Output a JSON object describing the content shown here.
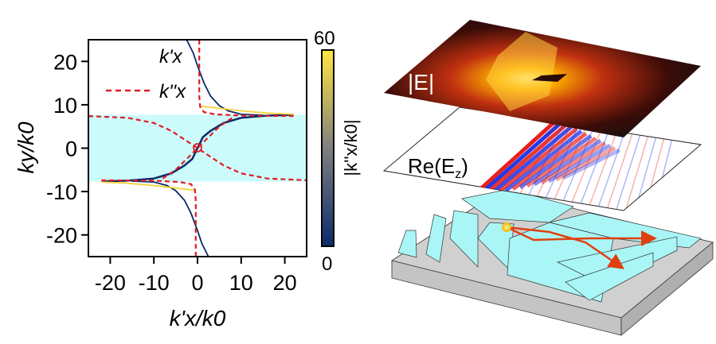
{
  "chart_data": {
    "type": "line",
    "xlabel": "k'x/k0",
    "ylabel": "ky/k0",
    "xlim": [
      -25,
      25
    ],
    "ylim": [
      -25,
      25
    ],
    "xticks": [
      "-20",
      "-10",
      "0",
      "10",
      "20"
    ],
    "xtick_values": [
      -20,
      -10,
      0,
      10,
      20
    ],
    "yticks": [
      "20",
      "10",
      "0",
      "-10",
      "-20"
    ],
    "ytick_values": [
      20,
      10,
      0,
      -10,
      -20
    ],
    "shaded_band": {
      "ymin": -7.7,
      "ymax": 7.7,
      "color": "#ccfbfb"
    },
    "legend": {
      "placement": "top-left",
      "entries": [
        "k'x",
        "k''x"
      ]
    },
    "colorbar": {
      "label": "|k''x/k0|",
      "min": "0",
      "max": "60",
      "colors": [
        "#0a2a6b",
        "#7f7f7f",
        "#ffe640"
      ]
    },
    "series": [
      {
        "name": "k'x",
        "style": "solid-colormap",
        "color": "#0b2a66",
        "points": [
          [
            -22,
            -7.7
          ],
          [
            -16,
            -7.5
          ],
          [
            -10,
            -7
          ],
          [
            -6,
            -5.8
          ],
          [
            -3,
            -4
          ],
          [
            -1.2,
            -2.5
          ],
          [
            -0.5,
            -1
          ],
          [
            0,
            0
          ],
          [
            0.5,
            1
          ],
          [
            1.2,
            2.5
          ],
          [
            3,
            4
          ],
          [
            6,
            5.8
          ],
          [
            10,
            7
          ],
          [
            16,
            7.5
          ],
          [
            22,
            7.7
          ]
        ]
      },
      {
        "name": "k'x upper branch",
        "style": "solid",
        "color": "#0b2a66",
        "points": [
          [
            -2.5,
            25
          ],
          [
            -1,
            22
          ],
          [
            0,
            19
          ],
          [
            1.5,
            15
          ],
          [
            3,
            12
          ],
          [
            5,
            9.8
          ],
          [
            7,
            8.6
          ],
          [
            10,
            7.8
          ],
          [
            15,
            7.6
          ]
        ]
      },
      {
        "name": "k'x lower branch",
        "style": "solid",
        "color": "#0b2a66",
        "points": [
          [
            2.5,
            -25
          ],
          [
            1,
            -22
          ],
          [
            0,
            -19
          ],
          [
            -1.5,
            -15
          ],
          [
            -3,
            -12
          ],
          [
            -5,
            -9.8
          ],
          [
            -7,
            -8.6
          ],
          [
            -10,
            -7.8
          ],
          [
            -15,
            -7.6
          ]
        ]
      },
      {
        "name": "k'x yellow upper",
        "style": "solid",
        "color": "#f2d33a",
        "points": [
          [
            0.5,
            9.7
          ],
          [
            5,
            9.2
          ],
          [
            10,
            8.6
          ],
          [
            16,
            8.1
          ],
          [
            22,
            7.8
          ]
        ]
      },
      {
        "name": "k'x yellow lower",
        "style": "solid",
        "color": "#f2d33a",
        "points": [
          [
            -0.5,
            -9.7
          ],
          [
            -5,
            -9.2
          ],
          [
            -10,
            -8.6
          ],
          [
            -16,
            -8.1
          ],
          [
            -22,
            -7.8
          ]
        ]
      },
      {
        "name": "k''x vertical upper",
        "style": "dashed",
        "color": "#e01b24",
        "points": [
          [
            0.4,
            25
          ],
          [
            0.4,
            12
          ],
          [
            0.6,
            9.5
          ],
          [
            1.5,
            8.3
          ],
          [
            4,
            7.8
          ],
          [
            10,
            7.5
          ],
          [
            22,
            7.4
          ]
        ]
      },
      {
        "name": "k''x vertical lower",
        "style": "dashed",
        "color": "#e01b24",
        "points": [
          [
            -0.4,
            -25
          ],
          [
            -0.4,
            -12
          ],
          [
            -0.6,
            -9.5
          ],
          [
            -1.5,
            -8.3
          ],
          [
            -4,
            -7.8
          ],
          [
            -10,
            -7.5
          ],
          [
            -22,
            -7.4
          ]
        ]
      },
      {
        "name": "k''x arc A",
        "style": "dashed",
        "color": "#e01b24",
        "points": [
          [
            -25,
            7.4
          ],
          [
            -16,
            7
          ],
          [
            -10,
            5.8
          ],
          [
            -6,
            4
          ],
          [
            -3,
            2
          ],
          [
            0,
            0
          ],
          [
            3,
            -2
          ],
          [
            6,
            -4
          ],
          [
            10,
            -5.8
          ],
          [
            16,
            -7
          ],
          [
            25,
            -7.4
          ]
        ]
      },
      {
        "name": "k''x arc B",
        "style": "dashed",
        "color": "#e01b24",
        "points": [
          [
            -8,
            -7
          ],
          [
            -5,
            -5
          ],
          [
            -3,
            -3
          ],
          [
            -1,
            -1
          ],
          [
            0,
            0
          ],
          [
            1,
            1
          ],
          [
            3,
            3
          ],
          [
            5,
            5
          ],
          [
            8,
            7
          ]
        ]
      }
    ]
  },
  "illustration": {
    "top_panel_label": "|E|",
    "middle_panel_label_main": "Re(E",
    "middle_panel_label_sub": "z",
    "middle_panel_label_end": ")"
  }
}
